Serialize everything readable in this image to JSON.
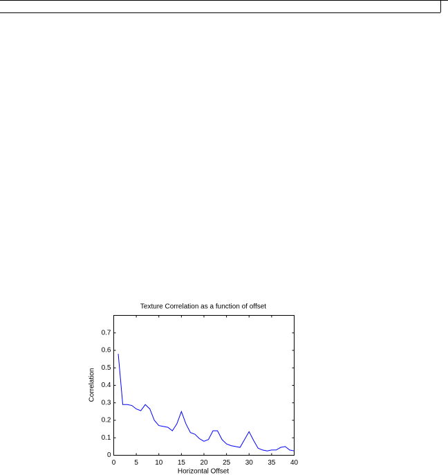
{
  "chart_data": {
    "type": "line",
    "title": "Texture Correlation as a function of offset",
    "x_label": "Horizontal Offset",
    "y_label": "Correlation",
    "x": [
      1,
      2,
      3,
      4,
      5,
      6,
      7,
      8,
      9,
      10,
      11,
      12,
      13,
      14,
      15,
      16,
      17,
      18,
      19,
      20,
      21,
      22,
      23,
      24,
      25,
      26,
      27,
      28,
      29,
      30,
      31,
      32,
      33,
      34,
      35,
      36,
      37,
      38,
      39,
      40
    ],
    "series": [
      {
        "color": "#0000ff",
        "values": [
          0.58,
          0.29,
          0.29,
          0.285,
          0.265,
          0.255,
          0.29,
          0.265,
          0.2,
          0.17,
          0.165,
          0.16,
          0.14,
          0.18,
          0.25,
          0.18,
          0.13,
          0.12,
          0.095,
          0.08,
          0.09,
          0.14,
          0.14,
          0.09,
          0.065,
          0.055,
          0.05,
          0.045,
          0.09,
          0.135,
          0.085,
          0.04,
          0.03,
          0.025,
          0.03,
          0.03,
          0.045,
          0.05,
          0.03,
          0.025
        ]
      }
    ],
    "xlim": [
      0,
      40
    ],
    "xticks": [
      0,
      5,
      10,
      15,
      20,
      25,
      30,
      35,
      40
    ],
    "ylim": [
      0,
      0.8
    ],
    "yticks": [
      0,
      0.1,
      0.2,
      0.3,
      0.4,
      0.5,
      0.6,
      0.7
    ]
  }
}
